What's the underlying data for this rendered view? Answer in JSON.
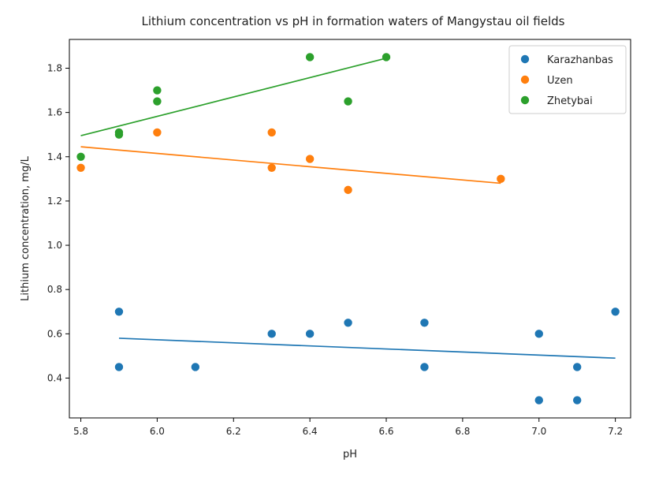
{
  "chart_data": {
    "type": "scatter",
    "title": "Lithium concentration vs pH in formation waters of Mangystau oil fields",
    "xlabel": "pH",
    "ylabel": "Lithium concentration, mg/L",
    "xlim": [
      5.77,
      7.24
    ],
    "ylim": [
      0.22,
      1.93
    ],
    "xticks": [
      "5.8",
      "6.0",
      "6.2",
      "6.4",
      "6.6",
      "6.8",
      "7.0",
      "7.2"
    ],
    "yticks": [
      "0.4",
      "0.6",
      "0.8",
      "1.0",
      "1.2",
      "1.4",
      "1.6",
      "1.8"
    ],
    "grid": false,
    "legend_position": "top-right",
    "series": [
      {
        "name": "Karazhanbas",
        "color": "#1f77b4",
        "points": [
          [
            5.9,
            0.7
          ],
          [
            5.9,
            0.45
          ],
          [
            6.1,
            0.45
          ],
          [
            6.3,
            0.6
          ],
          [
            6.4,
            0.6
          ],
          [
            6.5,
            0.65
          ],
          [
            6.7,
            0.65
          ],
          [
            6.7,
            0.45
          ],
          [
            7.0,
            0.6
          ],
          [
            7.0,
            0.3
          ],
          [
            7.1,
            0.45
          ],
          [
            7.1,
            0.3
          ],
          [
            7.2,
            0.7
          ]
        ],
        "trend": [
          [
            5.9,
            0.58
          ],
          [
            7.2,
            0.49
          ]
        ]
      },
      {
        "name": "Uzen",
        "color": "#ff7f0e",
        "points": [
          [
            5.8,
            1.35
          ],
          [
            6.0,
            1.51
          ],
          [
            6.3,
            1.51
          ],
          [
            6.3,
            1.35
          ],
          [
            6.4,
            1.39
          ],
          [
            6.5,
            1.25
          ],
          [
            6.9,
            1.3
          ]
        ],
        "trend": [
          [
            5.8,
            1.445
          ],
          [
            6.9,
            1.28
          ]
        ]
      },
      {
        "name": "Zhetybai",
        "color": "#2ca02c",
        "points": [
          [
            5.8,
            1.4
          ],
          [
            5.9,
            1.51
          ],
          [
            5.9,
            1.5
          ],
          [
            6.0,
            1.7
          ],
          [
            6.0,
            1.65
          ],
          [
            6.4,
            1.85
          ],
          [
            6.5,
            1.65
          ],
          [
            6.6,
            1.85
          ]
        ],
        "trend": [
          [
            5.8,
            1.495
          ],
          [
            6.6,
            1.845
          ]
        ]
      }
    ]
  }
}
